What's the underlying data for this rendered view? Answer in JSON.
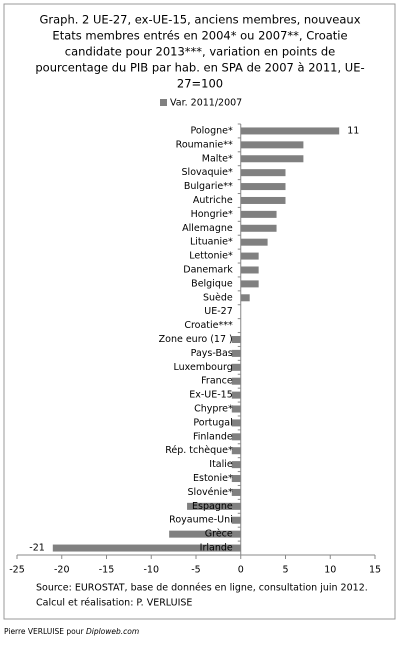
{
  "chart_data": {
    "type": "barh",
    "title": [
      "Graph. 2 UE-27, ex-UE-15, anciens membres, nouveaux",
      "Etats membres entrés en 2004* ou 2007**, Croatie",
      "candidate pour 2013***, variation en points de",
      "pourcentage du PIB par hab. en SPA de 2007 à 2011, UE-",
      "27=100"
    ],
    "categories": [
      "Pologne*",
      "Roumanie**",
      "Malte*",
      "Slovaquie*",
      "Bulgarie**",
      "Autriche",
      "Hongrie*",
      "Allemagne",
      "Lituanie*",
      "Lettonie*",
      "Danemark",
      "Belgique",
      "Suède",
      "UE-27",
      "Croatie***",
      "Zone euro (17 )",
      "Pays-Bas",
      "Luxembourg",
      "France",
      "Ex-UE-15",
      "Chypre*",
      "Portugal",
      "Finlande",
      "Rép. tchèque*",
      "Italie",
      "Estonie*",
      "Slovénie*",
      "Espagne",
      "Royaume-Uni",
      "Grèce",
      "Irlande"
    ],
    "series": [
      {
        "name": "Var. 2011/2007",
        "color": "#808080",
        "values": [
          11,
          7,
          7,
          5,
          5,
          5,
          4,
          4,
          3,
          2,
          2,
          2,
          1,
          0,
          0,
          -1,
          -1,
          -1,
          -1,
          -1,
          -1,
          -1,
          -1,
          -1,
          -1,
          -1,
          -1,
          -6,
          -1,
          -8,
          -21
        ],
        "value_labels": [
          "11",
          null,
          null,
          null,
          null,
          null,
          null,
          null,
          null,
          null,
          null,
          null,
          null,
          null,
          null,
          null,
          null,
          null,
          null,
          null,
          null,
          null,
          null,
          null,
          null,
          null,
          null,
          null,
          null,
          null,
          "-21"
        ]
      }
    ],
    "xlim": [
      -25,
      15
    ],
    "xticks": [
      -25,
      -20,
      -15,
      -10,
      -5,
      0,
      5,
      10,
      15
    ],
    "source": [
      "Source: EUROSTAT, base de données en ligne, consultation  juin 2012.",
      "Calcul et réalisation:  P. VERLUISE"
    ],
    "footer": [
      "Pierre VERLUISE pour ",
      "Diploweb.com"
    ]
  }
}
